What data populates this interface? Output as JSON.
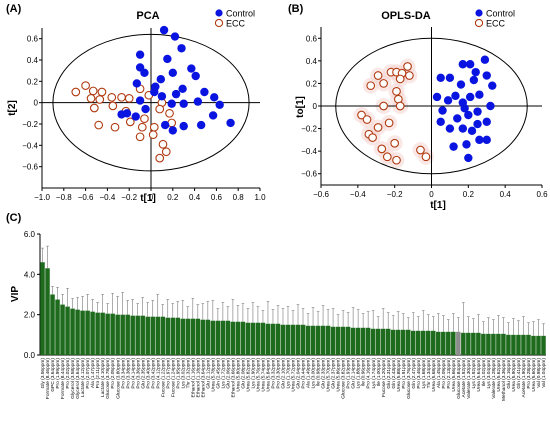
{
  "colors": {
    "control": "#0a14e0",
    "ecc": "#b03a10",
    "ecc_shade": "#f6d6d2",
    "bar": "#1e6b1e",
    "bar_highlight": "#8c8c8c",
    "axis": "#000000"
  },
  "chart_data": [
    {
      "type": "scatter",
      "panel_label": "(A)",
      "title": "PCA",
      "xlabel": "t[1]",
      "ylabel": "t[2]",
      "xlim": [
        -1.0,
        1.0
      ],
      "ylim": [
        -0.8,
        0.7
      ],
      "xticks": [
        -1.0,
        -0.8,
        -0.6,
        -0.4,
        -0.2,
        0.0,
        0.2,
        0.4,
        0.6,
        0.8,
        1.0
      ],
      "xtick_labels": [
        "−1.0",
        "−0.8",
        "−0.6",
        "−0.4",
        "−0.2",
        "0",
        "0.2",
        "0.4",
        "0.6",
        "0.8",
        "1.0"
      ],
      "yticks": [
        -0.6,
        -0.4,
        -0.2,
        0.0,
        0.2,
        0.4,
        0.6
      ],
      "ytick_labels": [
        "−0.6",
        "−0.4",
        "−0.2",
        "0",
        "0.2",
        "0.4",
        "0.6"
      ],
      "ellipse": {
        "rx": 0.9,
        "ry": 0.64
      },
      "legend": "top-right",
      "series": [
        {
          "name": "Control",
          "marker": "filled-circle",
          "points": [
            [
              0.12,
              0.68
            ],
            [
              0.22,
              0.62
            ],
            [
              0.28,
              0.51
            ],
            [
              -0.1,
              0.45
            ],
            [
              0.15,
              0.41
            ],
            [
              0.37,
              0.32
            ],
            [
              0.41,
              0.25
            ],
            [
              -0.1,
              0.33
            ],
            [
              -0.06,
              0.28
            ],
            [
              0.2,
              0.28
            ],
            [
              0.09,
              0.22
            ],
            [
              0.04,
              0.15
            ],
            [
              0.03,
              0.1
            ],
            [
              0.1,
              0.06
            ],
            [
              0.29,
              0.13
            ],
            [
              0.23,
              0.08
            ],
            [
              0.49,
              0.1
            ],
            [
              0.43,
              0.01
            ],
            [
              0.58,
              0.05
            ],
            [
              0.19,
              -0.01
            ],
            [
              0.3,
              -0.01
            ],
            [
              0.63,
              -0.02
            ],
            [
              0.57,
              -0.12
            ],
            [
              0.73,
              -0.19
            ],
            [
              0.46,
              -0.21
            ],
            [
              0.3,
              -0.22
            ],
            [
              0.2,
              -0.26
            ],
            [
              0.13,
              -0.21
            ],
            [
              -0.1,
              0.02
            ],
            [
              -0.22,
              -0.1
            ],
            [
              -0.27,
              -0.11
            ],
            [
              -0.14,
              -0.13
            ],
            [
              -0.05,
              -0.06
            ],
            [
              -0.13,
              0.18
            ]
          ]
        },
        {
          "name": "ECC",
          "marker": "open-circle",
          "points": [
            [
              -0.69,
              0.1
            ],
            [
              -0.6,
              0.16
            ],
            [
              -0.53,
              0.11
            ],
            [
              -0.45,
              0.1
            ],
            [
              -0.55,
              0.04
            ],
            [
              -0.47,
              0.03
            ],
            [
              -0.52,
              -0.05
            ],
            [
              -0.35,
              -0.03
            ],
            [
              -0.27,
              0.05
            ],
            [
              -0.2,
              0.04
            ],
            [
              -0.1,
              0.13
            ],
            [
              -0.02,
              0.07
            ],
            [
              0.1,
              0.0
            ],
            [
              0.17,
              -0.1
            ],
            [
              0.19,
              -0.19
            ],
            [
              0.03,
              -0.23
            ],
            [
              -0.08,
              -0.23
            ],
            [
              -0.1,
              -0.32
            ],
            [
              0.02,
              -0.3
            ],
            [
              0.11,
              -0.39
            ],
            [
              0.08,
              -0.52
            ],
            [
              0.14,
              -0.46
            ],
            [
              -0.33,
              -0.23
            ],
            [
              -0.48,
              -0.21
            ],
            [
              -0.19,
              -0.18
            ],
            [
              -0.06,
              -0.15
            ],
            [
              -0.23,
              -0.08
            ],
            [
              -0.36,
              0.05
            ],
            [
              0.08,
              -0.06
            ]
          ]
        }
      ]
    },
    {
      "type": "scatter",
      "panel_label": "(B)",
      "title": "OPLS-DA",
      "xlabel": "t[1]",
      "ylabel": "to[1]",
      "xlim": [
        -0.6,
        0.6
      ],
      "ylim": [
        -0.7,
        0.7
      ],
      "xticks": [
        -0.6,
        -0.4,
        -0.2,
        0.0,
        0.2,
        0.4,
        0.6
      ],
      "xtick_labels": [
        "−0.6",
        "−0.4",
        "−0.2",
        "0",
        "0.2",
        "0.4",
        "0.6"
      ],
      "yticks": [
        -0.6,
        -0.4,
        -0.2,
        0.0,
        0.2,
        0.4,
        0.6
      ],
      "ytick_labels": [
        "−0.6",
        "−0.4",
        "−0.2",
        "0",
        "0.2",
        "0.4",
        "0.6"
      ],
      "ellipse": {
        "rx": 0.52,
        "ry": 0.6
      },
      "legend": "top-right",
      "series": [
        {
          "name": "Control",
          "marker": "filled-circle",
          "points": [
            [
              0.29,
              0.41
            ],
            [
              0.17,
              0.37
            ],
            [
              0.21,
              0.37
            ],
            [
              0.23,
              0.23
            ],
            [
              0.3,
              0.27
            ],
            [
              0.24,
              0.3
            ],
            [
              0.05,
              0.25
            ],
            [
              0.1,
              0.25
            ],
            [
              0.33,
              0.18
            ],
            [
              0.16,
              0.19
            ],
            [
              0.13,
              0.09
            ],
            [
              0.26,
              0.1
            ],
            [
              0.03,
              0.08
            ],
            [
              0.09,
              0.05
            ],
            [
              0.21,
              0.08
            ],
            [
              0.32,
              0.0
            ],
            [
              0.17,
              0.03
            ],
            [
              0.18,
              -0.02
            ],
            [
              0.25,
              -0.05
            ],
            [
              0.06,
              -0.04
            ],
            [
              0.2,
              -0.08
            ],
            [
              0.14,
              -0.11
            ],
            [
              0.3,
              -0.14
            ],
            [
              0.25,
              -0.16
            ],
            [
              0.05,
              -0.14
            ],
            [
              0.1,
              -0.2
            ],
            [
              0.22,
              -0.22
            ],
            [
              0.26,
              -0.3
            ],
            [
              0.3,
              -0.3
            ],
            [
              0.12,
              -0.36
            ],
            [
              0.19,
              -0.34
            ],
            [
              0.2,
              -0.46
            ],
            [
              0.17,
              -0.2
            ]
          ]
        },
        {
          "name": "ECC",
          "marker": "open-circle",
          "points": [
            [
              -0.22,
              0.3
            ],
            [
              -0.19,
              0.3
            ],
            [
              -0.16,
              0.29
            ],
            [
              -0.13,
              0.35
            ],
            [
              -0.12,
              0.27
            ],
            [
              -0.29,
              0.27
            ],
            [
              -0.26,
              0.2
            ],
            [
              -0.17,
              0.24
            ],
            [
              -0.33,
              0.18
            ],
            [
              -0.19,
              0.13
            ],
            [
              -0.18,
              0.06
            ],
            [
              -0.26,
              0.0
            ],
            [
              -0.17,
              0.0
            ],
            [
              -0.38,
              -0.08
            ],
            [
              -0.35,
              -0.12
            ],
            [
              -0.23,
              -0.15
            ],
            [
              -0.29,
              -0.19
            ],
            [
              -0.34,
              -0.25
            ],
            [
              -0.32,
              -0.28
            ],
            [
              -0.2,
              -0.33
            ],
            [
              -0.27,
              -0.38
            ],
            [
              -0.24,
              -0.45
            ],
            [
              -0.19,
              -0.48
            ],
            [
              -0.06,
              -0.39
            ],
            [
              -0.03,
              -0.45
            ]
          ]
        }
      ]
    },
    {
      "type": "bar",
      "panel_label": "(C)",
      "ylabel": "VIP",
      "ylim": [
        0,
        6
      ],
      "yticks": [
        0,
        2,
        4,
        6
      ],
      "ytick_labels": [
        "0.0",
        "2.0",
        "4.0",
        "6.0"
      ],
      "highlight_index": 83,
      "categories": [
        "Gly (3.56ppm)",
        "Formate (8.46ppm)",
        "GPC (3.64ppm)",
        "Pro (1.99ppm)",
        "Formate (8.44ppm)",
        "Pro (2.02ppm)",
        "Glycerol (3.58ppm)",
        "Glycerol (3.64ppm)",
        "Lactate (4.12ppm)",
        "Pro (2.07ppm)",
        "Ala (1.47ppm)",
        "Pro (2.11ppm)",
        "Lactate (4.10ppm)",
        "Glucose (3.78ppm)",
        "Pro (2.05ppm)",
        "Glucose (3.80ppm)",
        "Pro (3.34ppm)",
        "Pro (3.38ppm)",
        "Pro (4.14ppm)",
        "Pro (3.36ppm)",
        "Glu (2.35ppm)",
        "Pro (3.40ppm)",
        "Pro (3.42ppm)",
        "Pro (4.12ppm)",
        "Fucose (1.22ppm)",
        "Pro (1.97ppm)",
        "Fucose (1.24ppm)",
        "Pro (1.95ppm)",
        "Lys (3.02ppm)",
        "Thr (1.32ppm)",
        "Ethanol (1.16ppm)",
        "Ethanol (1.18ppm)",
        "Ethanol (3.64ppm)",
        "Glu (2.12ppm)",
        "Urea (5.78ppm)",
        "Gln (2.45ppm)",
        "Lys (1.72ppm)",
        "Glu (2.06ppm)",
        "Ethanol (3.66ppm)",
        "Urea (5.80ppm)",
        "Glu (2.08ppm)",
        "Urea (5.82ppm)",
        "Lys (1.90ppm)",
        "Urea (5.76ppm)",
        "Urea (5.74ppm)",
        "Urea (5.84ppm)",
        "Pro (3.32ppm)",
        "Pro (3.30ppm)",
        "Glu (2.10ppm)",
        "Lys (1.70ppm)",
        "Urea (5.72ppm)",
        "Glu (2.04ppm)",
        "Pro (3.44ppm)",
        "Ala (1.49ppm)",
        "Lys (3.00ppm)",
        "Ile (0.98ppm)",
        "Glu (2.33ppm)",
        "Urea (5.70ppm)",
        "Glu (2.37ppm)",
        "Urea (5.86ppm)",
        "Glucose (3.82ppm)",
        "Pro (1.93ppm)",
        "Glu (2.14ppm)",
        "Lys (1.88ppm)",
        "Ile (0.96ppm)",
        "Pro (4.16ppm)",
        "Lys (1.74ppm)",
        "Ile (1.00ppm)",
        "Fucose (1.20ppm)",
        "Glu (2.31ppm)",
        "Gln (2.43ppm)",
        "Urea (5.88ppm)",
        "Pro (1.91ppm)",
        "Glucose (3.76ppm)",
        "Gln (2.47ppm)",
        "Pro (3.46ppm)",
        "Lys (1.68ppm)",
        "Thr (1.34ppm)",
        "Urea (5.68ppm)",
        "Ala (1.45ppm)",
        "Pro (2.09ppm)",
        "Pro (2.13ppm)",
        "Urea (5.66ppm)",
        "Glucose (3.84ppm)",
        "Acetate (1.92ppm)",
        "Valerate (1.30ppm)",
        "Lys (1.92ppm)",
        "Urea (5.64ppm)",
        "Ile (1.02ppm)",
        "Lys (3.04ppm)",
        "Valerate (1.28ppm)",
        "Urea (5.62ppm)",
        "Methanol (3.36ppm)",
        "Glu (2.16ppm)",
        "Urea (5.90ppm)",
        "Gln (2.41ppm)",
        "Acetate (1.90ppm)",
        "Pro (3.28ppm)",
        "Urea (5.60ppm)",
        "Val (0.98ppm)",
        "Val (1.04ppm)"
      ],
      "values": [
        4.6,
        4.3,
        3.0,
        2.75,
        2.5,
        2.4,
        2.3,
        2.25,
        2.2,
        2.2,
        2.15,
        2.1,
        2.1,
        2.05,
        2.05,
        2.0,
        2.0,
        2.0,
        1.95,
        1.95,
        1.95,
        1.9,
        1.9,
        1.9,
        1.9,
        1.85,
        1.85,
        1.85,
        1.8,
        1.8,
        1.8,
        1.8,
        1.75,
        1.75,
        1.7,
        1.7,
        1.7,
        1.7,
        1.65,
        1.65,
        1.65,
        1.6,
        1.6,
        1.6,
        1.6,
        1.55,
        1.55,
        1.55,
        1.5,
        1.5,
        1.5,
        1.5,
        1.5,
        1.45,
        1.45,
        1.45,
        1.45,
        1.45,
        1.4,
        1.4,
        1.4,
        1.4,
        1.35,
        1.35,
        1.35,
        1.35,
        1.3,
        1.3,
        1.3,
        1.3,
        1.25,
        1.25,
        1.25,
        1.25,
        1.2,
        1.2,
        1.2,
        1.2,
        1.2,
        1.15,
        1.15,
        1.15,
        1.15,
        1.15,
        1.1,
        1.1,
        1.1,
        1.1,
        1.05,
        1.05,
        1.05,
        1.05,
        1.05,
        1.0,
        1.0,
        1.0,
        1.0,
        1.0,
        0.95,
        0.95,
        0.95
      ],
      "errors": [
        0.7,
        1.1,
        0.4,
        0.6,
        0.5,
        0.9,
        0.5,
        0.6,
        0.7,
        0.8,
        0.6,
        0.5,
        0.9,
        0.5,
        1.0,
        0.9,
        1.1,
        0.7,
        0.8,
        0.6,
        0.9,
        0.7,
        0.8,
        1.1,
        0.6,
        0.9,
        0.7,
        0.8,
        0.9,
        0.6,
        1.0,
        0.7,
        0.8,
        0.9,
        1.0,
        0.6,
        0.9,
        0.7,
        1.1,
        0.8,
        0.9,
        0.7,
        1.0,
        0.8,
        0.6,
        1.1,
        0.7,
        0.9,
        0.8,
        0.9,
        0.7,
        1.0,
        0.8,
        0.6,
        0.9,
        0.7,
        1.0,
        0.8,
        0.9,
        0.6,
        0.8,
        0.7,
        1.0,
        0.9,
        0.7,
        0.8,
        0.9,
        0.6,
        1.0,
        0.8,
        0.7,
        0.9,
        0.8,
        0.6,
        0.9,
        0.7,
        1.0,
        0.8,
        0.7,
        0.9,
        0.8,
        0.6,
        0.9,
        0.7,
        1.5,
        0.8,
        0.7,
        0.9,
        0.6,
        0.8,
        0.7,
        0.9,
        0.8,
        0.6,
        0.8,
        0.7,
        0.9,
        0.6,
        0.7,
        0.8,
        0.6
      ]
    }
  ]
}
